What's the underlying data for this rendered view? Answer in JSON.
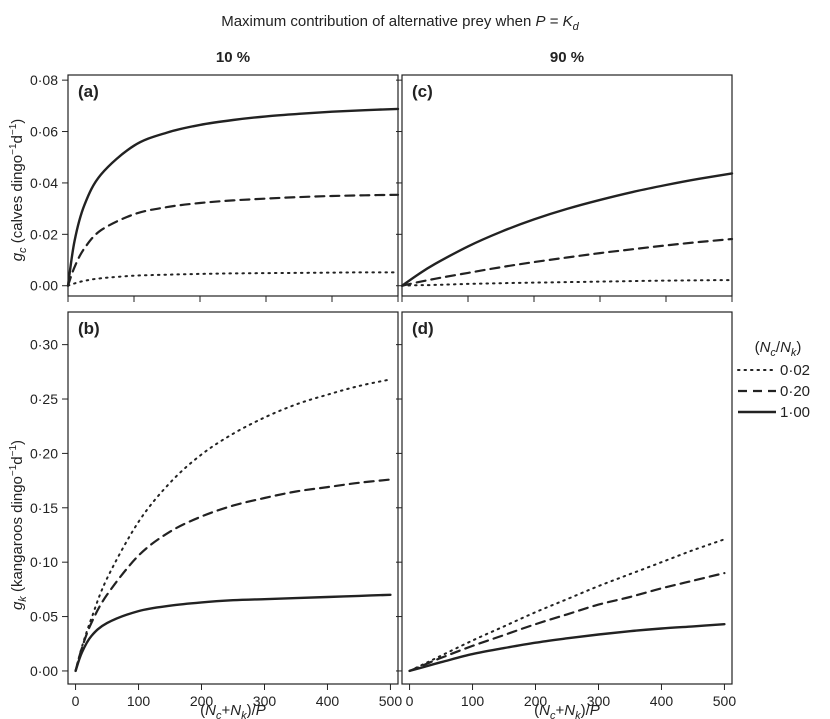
{
  "figure": {
    "title_prefix": "Maximum contribution of alternative prey when ",
    "title_var": "P",
    "title_eq": " = ",
    "title_k": "K",
    "title_k_sub": "d",
    "column_headers": [
      "10 %",
      "90 %"
    ]
  },
  "legend": {
    "title": "(Nc/Nk)",
    "entries": [
      {
        "label": "0·02",
        "style": "dotted"
      },
      {
        "label": "0·20",
        "style": "dashed"
      },
      {
        "label": "1·00",
        "style": "solid"
      }
    ]
  },
  "chart_data": [
    {
      "type": "line",
      "panel": "(a)",
      "xlabel": "",
      "ylabel": "gc (calves dingo−1d−1)",
      "xlim": [
        0,
        500
      ],
      "ylim": [
        -0.004,
        0.082
      ],
      "yticks": [
        0,
        0.02,
        0.04,
        0.06,
        0.08
      ],
      "ytick_labels": [
        "0·00",
        "0·02",
        "0·04",
        "0·06",
        "0·08"
      ],
      "x": [
        0,
        10,
        25,
        50,
        100,
        150,
        200,
        250,
        300,
        350,
        400,
        450,
        500
      ],
      "series": [
        {
          "name": "0·02",
          "values": [
            0,
            0.0009,
            0.0019,
            0.0029,
            0.0039,
            0.0043,
            0.0046,
            0.0048,
            0.0049,
            0.005,
            0.0051,
            0.0052,
            0.0052
          ]
        },
        {
          "name": "0·20",
          "values": [
            0,
            0.0073,
            0.0146,
            0.0216,
            0.0278,
            0.0306,
            0.0322,
            0.0332,
            0.0339,
            0.0345,
            0.0349,
            0.0352,
            0.0354
          ]
        },
        {
          "name": "1·00",
          "values": [
            0,
            0.0175,
            0.0315,
            0.0433,
            0.0545,
            0.0596,
            0.0626,
            0.0645,
            0.0659,
            0.0669,
            0.0677,
            0.0683,
            0.0688
          ]
        }
      ]
    },
    {
      "type": "line",
      "panel": "(b)",
      "xlabel": "(Nc+Nk)/P",
      "ylabel": "gk (kangaroos dingo−1d−1)",
      "xlim": [
        -12,
        512
      ],
      "ylim": [
        -0.012,
        0.33
      ],
      "yticks": [
        0,
        0.05,
        0.1,
        0.15,
        0.2,
        0.25,
        0.3
      ],
      "ytick_labels": [
        "0·00",
        "0·05",
        "0·10",
        "0·15",
        "0·20",
        "0·25",
        "0·30"
      ],
      "x": [
        0,
        10,
        25,
        50,
        100,
        150,
        200,
        250,
        300,
        350,
        400,
        450,
        500
      ],
      "series": [
        {
          "name": "0·02",
          "values": [
            0,
            0.022,
            0.048,
            0.085,
            0.137,
            0.173,
            0.199,
            0.218,
            0.233,
            0.245,
            0.254,
            0.262,
            0.268
          ]
        },
        {
          "name": "0·20",
          "values": [
            0,
            0.021,
            0.044,
            0.07,
            0.106,
            0.128,
            0.142,
            0.152,
            0.159,
            0.165,
            0.169,
            0.173,
            0.176
          ]
        },
        {
          "name": "1·00",
          "values": [
            0,
            0.017,
            0.032,
            0.044,
            0.055,
            0.06,
            0.063,
            0.065,
            0.066,
            0.067,
            0.068,
            0.069,
            0.07
          ]
        }
      ]
    },
    {
      "type": "line",
      "panel": "(c)",
      "xlabel": "",
      "ylabel": "",
      "xlim": [
        0,
        500
      ],
      "ylim": [
        -0.004,
        0.082
      ],
      "yticks": [
        0,
        0.02,
        0.04,
        0.06,
        0.08
      ],
      "ytick_labels": [
        "",
        "",
        "",
        "",
        ""
      ],
      "x": [
        0,
        25,
        50,
        100,
        150,
        200,
        250,
        300,
        350,
        400,
        450,
        500
      ],
      "series": [
        {
          "name": "0·02",
          "values": [
            0,
            0.0002,
            0.0003,
            0.0007,
            0.001,
            0.0012,
            0.0014,
            0.0016,
            0.0018,
            0.002,
            0.0021,
            0.0022
          ]
        },
        {
          "name": "0·20",
          "values": [
            0,
            0.0014,
            0.0027,
            0.005,
            0.0072,
            0.0092,
            0.011,
            0.0127,
            0.0142,
            0.0157,
            0.017,
            0.0182
          ]
        },
        {
          "name": "1·00",
          "values": [
            0,
            0.0045,
            0.0085,
            0.0153,
            0.021,
            0.0258,
            0.0299,
            0.0334,
            0.0365,
            0.0392,
            0.0416,
            0.0437
          ]
        }
      ]
    },
    {
      "type": "line",
      "panel": "(d)",
      "xlabel": "(Nc+Nk)/P",
      "ylabel": "",
      "xlim": [
        -12,
        512
      ],
      "ylim": [
        -0.012,
        0.33
      ],
      "yticks": [
        0,
        0.05,
        0.1,
        0.15,
        0.2,
        0.25,
        0.3
      ],
      "ytick_labels": [
        "",
        "",
        "",
        "",
        "",
        "",
        ""
      ],
      "x": [
        0,
        25,
        50,
        100,
        150,
        200,
        250,
        300,
        350,
        400,
        450,
        500
      ],
      "series": [
        {
          "name": "0·02",
          "values": [
            0,
            0.007,
            0.014,
            0.028,
            0.041,
            0.054,
            0.066,
            0.078,
            0.089,
            0.1,
            0.111,
            0.121
          ]
        },
        {
          "name": "0·20",
          "values": [
            0,
            0.006,
            0.012,
            0.023,
            0.033,
            0.043,
            0.052,
            0.061,
            0.068,
            0.076,
            0.083,
            0.09
          ]
        },
        {
          "name": "1·00",
          "values": [
            0,
            0.004,
            0.008,
            0.0155,
            0.021,
            0.026,
            0.03,
            0.0335,
            0.0365,
            0.039,
            0.041,
            0.043
          ]
        }
      ]
    }
  ],
  "xtick_labels": [
    "0",
    "100",
    "200",
    "300",
    "400",
    "500"
  ],
  "xticks": [
    0,
    100,
    200,
    300,
    400,
    500
  ]
}
